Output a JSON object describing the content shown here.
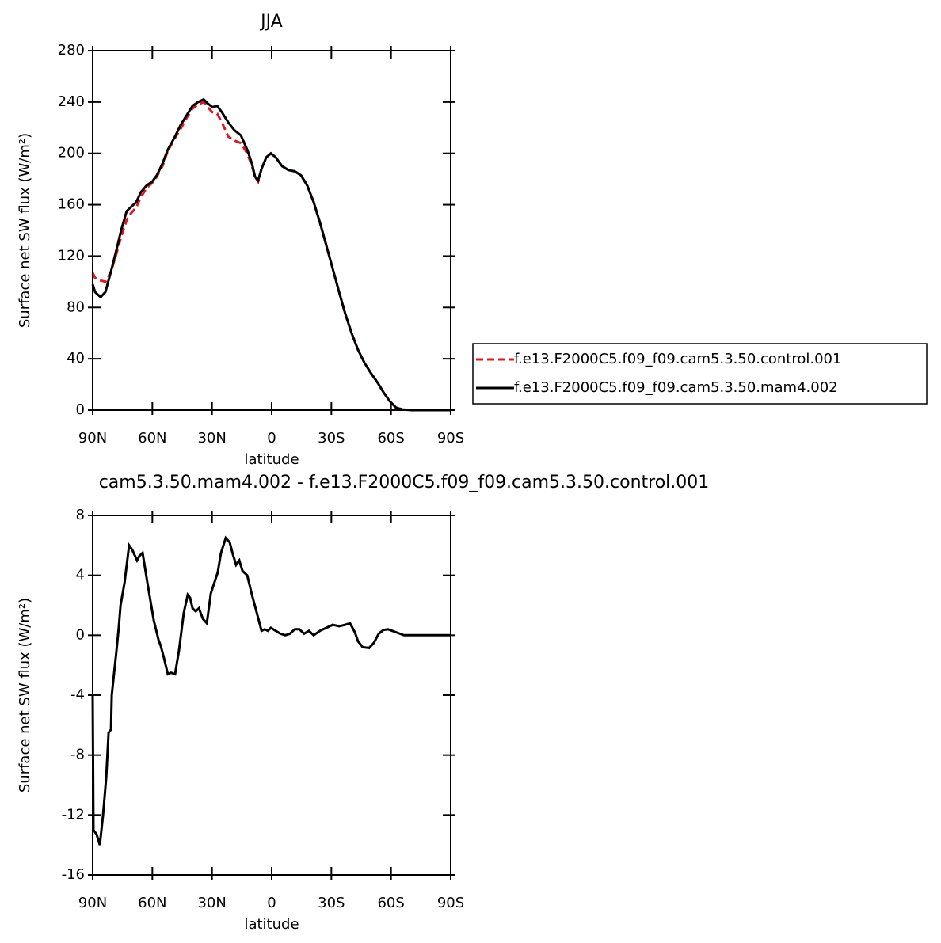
{
  "chart_data": [
    {
      "type": "line",
      "title": "JJA",
      "xlabel": "latitude",
      "ylabel": "Surface net SW flux (W/m²)",
      "xlim": [
        90,
        -90
      ],
      "xticks": [
        {
          "value": 90,
          "label": "90N"
        },
        {
          "value": 60,
          "label": "60N"
        },
        {
          "value": 30,
          "label": "30N"
        },
        0,
        {
          "value": -30,
          "label": "30S"
        },
        {
          "value": -60,
          "label": "60S"
        },
        {
          "value": -90,
          "label": "90S"
        }
      ],
      "ylim": [
        0,
        280
      ],
      "yticks": [
        0,
        40,
        80,
        120,
        160,
        200,
        240,
        280
      ],
      "legend": "right",
      "x": [
        90,
        88.8,
        86,
        83.6,
        80.8,
        78,
        75.7,
        72.9,
        70.9,
        68.1,
        65.7,
        62.9,
        60.1,
        57.7,
        54.9,
        52.2,
        49,
        45.8,
        42.6,
        39.8,
        37,
        34.2,
        32.2,
        29.8,
        27.4,
        25,
        21.8,
        18.7,
        15.5,
        12.3,
        9.9,
        8.4,
        6.8,
        5.1,
        2.7,
        0.4,
        -2,
        -5.2,
        -8.4,
        -11.6,
        -14.7,
        -17.9,
        -21.1,
        -24.3,
        -27.5,
        -30.7,
        -33.9,
        -37,
        -40.2,
        -43.4,
        -46.6,
        -49.8,
        -53,
        -56.2,
        -59.3,
        -62.5,
        -65.7,
        -70.5,
        -90
      ],
      "series": [
        {
          "name": "f.e13.F2000C5.f09_f09.cam5.3.50.control.001",
          "color": "#e8141c",
          "line_style": "dashed",
          "values": [
            107,
            103,
            101,
            100,
            108,
            122,
            135,
            148,
            153,
            158,
            166,
            173,
            177,
            182,
            190,
            202,
            211,
            219,
            228,
            235,
            238,
            240,
            236,
            232,
            231,
            224,
            213,
            210,
            208,
            200,
            190,
            182,
            178,
            188,
            197,
            200,
            197,
            190,
            187,
            186,
            183,
            175,
            162,
            146,
            128,
            110,
            92,
            75,
            60,
            47,
            37,
            29,
            22,
            14,
            7,
            2,
            0.5,
            0,
            0
          ]
        },
        {
          "name": "f.e13.F2000C5.f09_f09.cam5.3.50.mam4.002",
          "color": "#000000",
          "line_style": "solid",
          "values": [
            98,
            92,
            88,
            92,
            108,
            125,
            140,
            155,
            158,
            162,
            170,
            175,
            178,
            183,
            192,
            203,
            212,
            222,
            230,
            237,
            240,
            242,
            239,
            236,
            237,
            232,
            224,
            218,
            214,
            203,
            192,
            182,
            179,
            188,
            197,
            200,
            197,
            190,
            187,
            186,
            183,
            175,
            162,
            146,
            128,
            110,
            92,
            75,
            60,
            47,
            37,
            29,
            22,
            14,
            7,
            2,
            0.5,
            0,
            0
          ]
        }
      ]
    },
    {
      "type": "line",
      "title": "cam5.3.50.mam4.002 - f.e13.F2000C5.f09_f09.cam5.3.50.control.001",
      "xlabel": "latitude",
      "ylabel": "Surface net SW flux (W/m²)",
      "xlim": [
        90,
        -90
      ],
      "xticks": [
        {
          "value": 90,
          "label": "90N"
        },
        {
          "value": 60,
          "label": "60N"
        },
        {
          "value": 30,
          "label": "30N"
        },
        0,
        {
          "value": -30,
          "label": "30S"
        },
        {
          "value": -60,
          "label": "60S"
        },
        {
          "value": -90,
          "label": "90S"
        }
      ],
      "ylim": [
        -16,
        8
      ],
      "yticks": [
        -16,
        -12,
        -8,
        -4,
        0,
        4,
        8
      ],
      "color": "#000000",
      "x": [
        90,
        89.6,
        88,
        86.4,
        84.8,
        83.2,
        82,
        80.8,
        80.4,
        78,
        76.9,
        76,
        74,
        71.7,
        70.1,
        67.7,
        66.5,
        64.9,
        62.5,
        59.3,
        56.9,
        55.8,
        54.2,
        52.2,
        50.6,
        48.6,
        46.6,
        44.2,
        42.2,
        41,
        39.8,
        38.2,
        36.6,
        34.6,
        32.6,
        30.6,
        27.1,
        25.5,
        23.1,
        21.1,
        19.5,
        17.9,
        16.3,
        14.7,
        12.3,
        9.9,
        7.5,
        5.1,
        3.5,
        1.9,
        0.4,
        -2,
        -4.4,
        -6.8,
        -9.2,
        -11.6,
        -13.9,
        -16.3,
        -18.7,
        -21.1,
        -24.3,
        -27.5,
        -30.7,
        -33.9,
        -37,
        -39.4,
        -41.8,
        -43.4,
        -45.8,
        -49,
        -51.4,
        -53.8,
        -56.2,
        -58.5,
        -62.5,
        -66.5,
        -90
      ],
      "values": [
        -4,
        -13,
        -13.3,
        -14,
        -12,
        -9.5,
        -6.5,
        -6.3,
        -4,
        -1,
        0.5,
        2,
        3.5,
        6,
        5.7,
        5,
        5.3,
        5.5,
        3.5,
        1,
        -0.3,
        -0.7,
        -1.5,
        -2.6,
        -2.5,
        -2.6,
        -1,
        1.5,
        2.7,
        2.5,
        1.8,
        1.6,
        1.8,
        1.1,
        0.8,
        2.8,
        4.2,
        5.5,
        6.5,
        6.2,
        5.4,
        4.7,
        5,
        4.3,
        4,
        2.7,
        1.5,
        0.3,
        0.4,
        0.3,
        0.5,
        0.3,
        0.1,
        0,
        0.1,
        0.4,
        0.4,
        0.1,
        0.3,
        0,
        0.3,
        0.5,
        0.7,
        0.6,
        0.7,
        0.8,
        0.2,
        -0.4,
        -0.8,
        -0.85,
        -0.5,
        0.1,
        0.35,
        0.4,
        0.2,
        0,
        0
      ]
    }
  ]
}
